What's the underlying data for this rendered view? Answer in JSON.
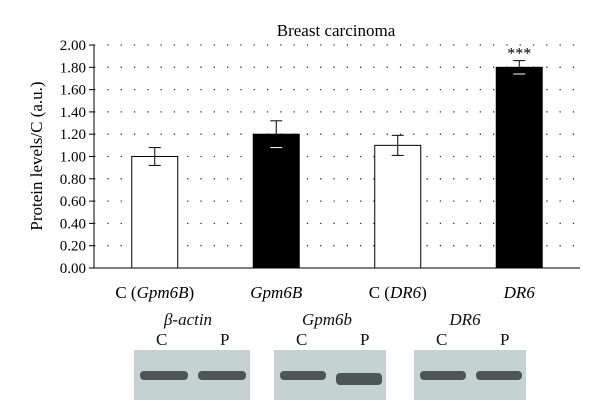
{
  "chart_data": {
    "type": "bar",
    "title": "Breast carcinoma",
    "ylabel": "Protein levels/C (a.u.)",
    "xlabel": "",
    "ylim": [
      0,
      2
    ],
    "yticks": [
      "0.00",
      "0.20",
      "0.40",
      "0.60",
      "0.80",
      "1.00",
      "1.20",
      "1.40",
      "1.60",
      "1.80",
      "2.00"
    ],
    "grid": true,
    "categories": [
      {
        "prefix": "C (",
        "italic": "Gpm6B",
        "suffix": ")"
      },
      {
        "prefix": "",
        "italic": "Gpm6B",
        "suffix": ""
      },
      {
        "prefix": "C (",
        "italic": "DR6",
        "suffix": ")"
      },
      {
        "prefix": "",
        "italic": "DR6",
        "suffix": ""
      }
    ],
    "values": [
      1.0,
      1.2,
      1.1,
      1.8
    ],
    "errors": [
      0.08,
      0.12,
      0.09,
      0.06
    ],
    "fills": [
      "#ffffff",
      "#000000",
      "#ffffff",
      "#000000"
    ],
    "annotations": [
      "",
      "",
      "",
      "***"
    ]
  },
  "blots": [
    {
      "title": "β-actin",
      "lanes": [
        "C",
        "P"
      ]
    },
    {
      "title": "Gpm6b",
      "lanes": [
        "C",
        "P"
      ]
    },
    {
      "title": "DR6",
      "lanes": [
        "C",
        "P"
      ]
    }
  ]
}
